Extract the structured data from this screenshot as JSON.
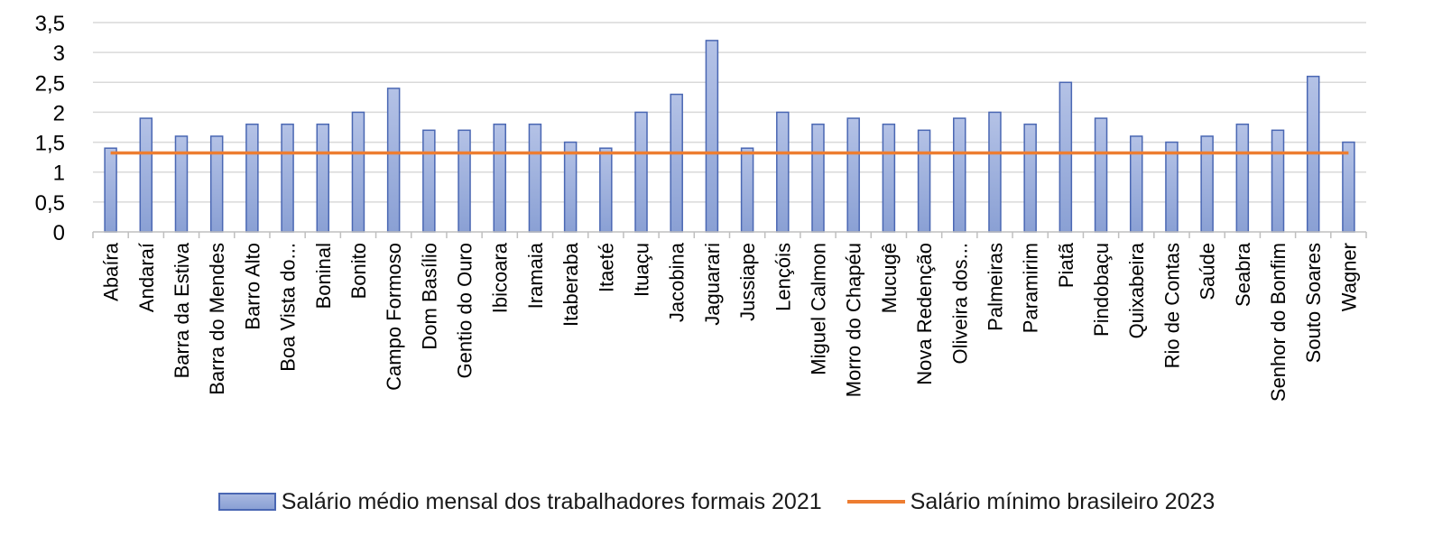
{
  "chart_data": {
    "type": "bar",
    "categories": [
      "Abaíra",
      "Andaraí",
      "Barra da Estiva",
      "Barra do Mendes",
      "Barro Alto",
      "Boa Vista do...",
      "Boninal",
      "Bonito",
      "Campo Formoso",
      "Dom Basílio",
      "Gentio do Ouro",
      "Ibicoara",
      "Iramaia",
      "Itaberaba",
      "Itaeté",
      "Ituaçu",
      "Jacobina",
      "Jaguarari",
      "Jussiape",
      "Lençóis",
      "Miguel Calmon",
      "Morro do Chapéu",
      "Mucugê",
      "Nova Redenção",
      "Oliveira dos...",
      "Palmeiras",
      "Paramirim",
      "Piatã",
      "Pindobaçu",
      "Quixabeira",
      "Rio de Contas",
      "Saúde",
      "Seabra",
      "Senhor do Bonfim",
      "Souto Soares",
      "Wagner"
    ],
    "series": [
      {
        "name": "Salário médio mensal dos trabalhadores formais 2021",
        "type": "bar",
        "color": "#8fa3d6",
        "values": [
          1.4,
          1.9,
          1.6,
          1.6,
          1.8,
          1.8,
          1.8,
          2.0,
          2.4,
          1.7,
          1.7,
          1.8,
          1.8,
          1.5,
          1.4,
          2.0,
          2.3,
          3.2,
          1.4,
          2.0,
          1.8,
          1.9,
          1.8,
          1.7,
          1.9,
          2.0,
          1.8,
          2.5,
          1.9,
          1.6,
          1.5,
          1.6,
          1.8,
          1.7,
          2.6,
          1.5
        ]
      },
      {
        "name": "Salário mínimo brasileiro 2023",
        "type": "line",
        "color": "#ed7d31",
        "value": 1.32
      }
    ],
    "ylim": [
      0,
      3.5
    ],
    "yticks": [
      "0",
      "0,5",
      "1",
      "1,5",
      "2",
      "2,5",
      "3",
      "3,5"
    ],
    "ytick_values": [
      0,
      0.5,
      1,
      1.5,
      2,
      2.5,
      3,
      3.5
    ],
    "grid": true,
    "legend_position": "bottom"
  }
}
